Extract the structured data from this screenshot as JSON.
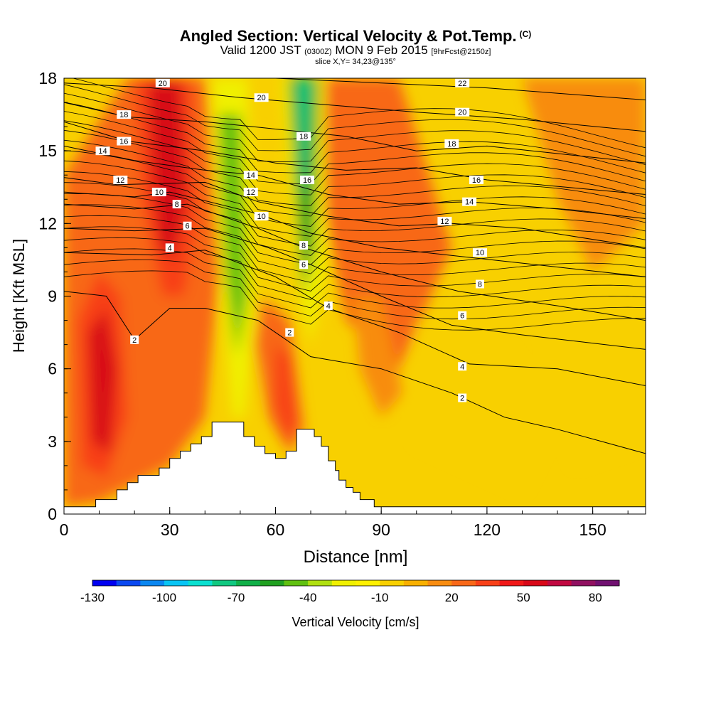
{
  "header": {
    "title": "Angled Section: Vertical Velocity & Pot.Temp.",
    "title_unit": "(C)",
    "valid_main": "Valid 1200 JST",
    "valid_utc": "(0300Z)",
    "valid_date": "MON 9 Feb 2015",
    "forecast": "[9hrFcst@2150z]",
    "slice": "slice X,Y= 34,23@135°"
  },
  "chart_data": {
    "type": "heatmap",
    "xlabel": "Distance [nm]",
    "ylabel": "Height [Kft MSL]",
    "xlim": [
      0,
      165
    ],
    "ylim": [
      0,
      18
    ],
    "x_ticks": [
      0,
      30,
      60,
      90,
      120,
      150
    ],
    "y_ticks": [
      0,
      3,
      6,
      9,
      12,
      15,
      18
    ],
    "colorbar": {
      "label": "Vertical Velocity [cm/s]",
      "min": -130,
      "max": 90,
      "step": 10,
      "tick_labels": [
        "-130",
        "-100",
        "-70",
        "-40",
        "-10",
        "20",
        "50",
        "80"
      ],
      "colors": [
        "#0000f0",
        "#0a48f0",
        "#0a86f0",
        "#08c4f4",
        "#0ae0d0",
        "#10c880",
        "#10b048",
        "#20a020",
        "#60c010",
        "#b0e010",
        "#f0f000",
        "#fff000",
        "#f8d000",
        "#f8b000",
        "#f88c10",
        "#f86818",
        "#f84018",
        "#f01818",
        "#d80818",
        "#c00840",
        "#901060",
        "#701070"
      ]
    },
    "series": [
      {
        "name": "Vertical Velocity",
        "units": "cm/s"
      },
      {
        "name": "Potential Temperature",
        "units": "C",
        "contour_labels": [
          "2",
          "4",
          "6",
          "8",
          "10",
          "12",
          "14",
          "16",
          "18",
          "20",
          "22"
        ]
      }
    ],
    "features": {
      "updrafts": [
        {
          "x": 12,
          "y": 5.5,
          "value": 50
        },
        {
          "x": 30,
          "y": 13.5,
          "value": 50
        },
        {
          "x": 65,
          "y": 5.0,
          "value": 30
        },
        {
          "x": 82,
          "y": 14.5,
          "value": 30
        }
      ],
      "downdrafts": [
        {
          "x": 49,
          "y": 12.5,
          "value": -50
        },
        {
          "x": 68,
          "y": 16.5,
          "value": -80
        }
      ],
      "terrain_kft": [
        [
          0,
          0.3
        ],
        [
          9,
          0.3
        ],
        [
          9,
          0.6
        ],
        [
          15,
          0.6
        ],
        [
          15,
          1.0
        ],
        [
          18,
          1.0
        ],
        [
          18,
          1.3
        ],
        [
          21,
          1.3
        ],
        [
          21,
          1.6
        ],
        [
          27,
          1.6
        ],
        [
          27,
          1.9
        ],
        [
          30,
          1.9
        ],
        [
          30,
          2.3
        ],
        [
          33,
          2.3
        ],
        [
          33,
          2.6
        ],
        [
          36,
          2.6
        ],
        [
          36,
          2.9
        ],
        [
          39,
          2.9
        ],
        [
          39,
          3.2
        ],
        [
          42,
          3.2
        ],
        [
          42,
          3.8
        ],
        [
          47,
          3.8
        ],
        [
          47,
          3.8
        ],
        [
          51,
          3.8
        ],
        [
          51,
          3.2
        ],
        [
          54,
          3.2
        ],
        [
          54,
          2.8
        ],
        [
          57,
          2.8
        ],
        [
          57,
          2.5
        ],
        [
          60,
          2.5
        ],
        [
          60,
          2.3
        ],
        [
          63,
          2.3
        ],
        [
          63,
          2.6
        ],
        [
          66,
          2.6
        ],
        [
          66,
          3.5
        ],
        [
          71,
          3.5
        ],
        [
          71,
          3.2
        ],
        [
          73,
          3.2
        ],
        [
          73,
          2.8
        ],
        [
          75,
          2.8
        ],
        [
          75,
          2.2
        ],
        [
          77,
          2.2
        ],
        [
          77,
          1.8
        ],
        [
          78,
          1.8
        ],
        [
          78,
          1.4
        ],
        [
          80,
          1.4
        ],
        [
          80,
          1.1
        ],
        [
          82,
          1.1
        ],
        [
          82,
          0.9
        ],
        [
          84,
          0.9
        ],
        [
          84,
          0.6
        ],
        [
          88,
          0.6
        ],
        [
          88,
          0.3
        ],
        [
          165,
          0.3
        ]
      ]
    }
  }
}
